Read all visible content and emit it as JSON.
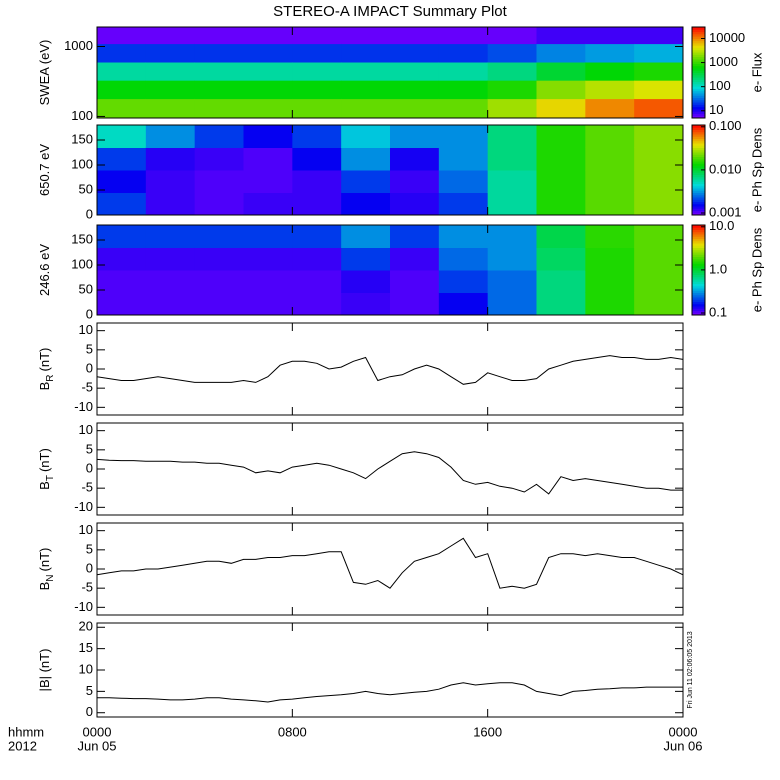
{
  "chart_data": [
    {
      "type": "heatmap",
      "title": "STEREO-A IMPACT Summary Plot",
      "ylabel": "SWEA (eV)",
      "zlabel": "e- Flux",
      "xlim": [
        0,
        24
      ],
      "xbins": [
        0,
        2,
        4,
        6,
        8,
        10,
        12,
        14,
        16,
        18,
        20,
        22,
        24
      ],
      "ylim": [
        95,
        1900
      ],
      "log_y": true,
      "yticks": [
        100,
        1000
      ],
      "ybins": [
        95,
        180,
        330,
        600,
        1100,
        1900
      ],
      "zlim": [
        5,
        30000
      ],
      "log_z": true,
      "zticks": [
        10,
        100,
        1000,
        10000
      ],
      "values": [
        [
          1500,
          600,
          150,
          20,
          6
        ],
        [
          1500,
          600,
          150,
          20,
          6
        ],
        [
          1500,
          600,
          150,
          20,
          6
        ],
        [
          1500,
          600,
          150,
          20,
          6
        ],
        [
          1500,
          600,
          150,
          20,
          6
        ],
        [
          1500,
          600,
          150,
          20,
          6
        ],
        [
          1500,
          600,
          150,
          20,
          6
        ],
        [
          1500,
          600,
          150,
          20,
          6
        ],
        [
          2500,
          800,
          200,
          25,
          6
        ],
        [
          5000,
          2000,
          400,
          40,
          8
        ],
        [
          10000,
          3000,
          600,
          50,
          8
        ],
        [
          15000,
          4000,
          800,
          60,
          8
        ]
      ]
    },
    {
      "type": "heatmap",
      "ylabel": "650.7 eV",
      "zlabel": "e- Ph Sp Dens",
      "xlim": [
        0,
        24
      ],
      "xbins": [
        0,
        2,
        4,
        6,
        8,
        10,
        12,
        14,
        16,
        18,
        20,
        22,
        24
      ],
      "ylim": [
        0,
        180
      ],
      "log_y": false,
      "yticks": [
        0,
        50,
        100,
        150
      ],
      "ybins": [
        0,
        45,
        90,
        135,
        180
      ],
      "zlim": [
        0.0009,
        0.11
      ],
      "log_z": true,
      "zticks": [
        {
          "value": 0.001,
          "label": "0.001"
        },
        {
          "value": 0.01,
          "label": "0.010"
        },
        {
          "value": 0.1,
          "label": "0.100"
        }
      ],
      "values": [
        [
          0.002,
          0.0015,
          0.002,
          0.005
        ],
        [
          0.0012,
          0.0012,
          0.0013,
          0.003
        ],
        [
          0.0011,
          0.0011,
          0.0012,
          0.002
        ],
        [
          0.0012,
          0.0011,
          0.0011,
          0.0015
        ],
        [
          0.0012,
          0.0012,
          0.0015,
          0.002
        ],
        [
          0.0015,
          0.002,
          0.003,
          0.004
        ],
        [
          0.0013,
          0.0012,
          0.0014,
          0.003
        ],
        [
          0.002,
          0.0025,
          0.003,
          0.003
        ],
        [
          0.006,
          0.006,
          0.007,
          0.007
        ],
        [
          0.015,
          0.015,
          0.015,
          0.015
        ],
        [
          0.02,
          0.02,
          0.02,
          0.02
        ],
        [
          0.025,
          0.025,
          0.025,
          0.025
        ]
      ]
    },
    {
      "type": "heatmap",
      "ylabel": "246.6 eV",
      "zlabel": "e- Ph Sp Dens",
      "xlim": [
        0,
        24
      ],
      "xbins": [
        0,
        2,
        4,
        6,
        8,
        10,
        12,
        14,
        16,
        18,
        20,
        22,
        24
      ],
      "ylim": [
        0,
        180
      ],
      "log_y": false,
      "yticks": [
        0,
        50,
        100,
        150
      ],
      "ybins": [
        0,
        45,
        90,
        135,
        180
      ],
      "zlim": [
        0.09,
        11
      ],
      "log_z": true,
      "zticks": [
        0.1,
        {
          "value": 1,
          "label": "1.0"
        },
        {
          "value": 10,
          "label": "10.0"
        }
      ],
      "values": [
        [
          0.11,
          0.11,
          0.12,
          0.2
        ],
        [
          0.11,
          0.11,
          0.12,
          0.2
        ],
        [
          0.11,
          0.11,
          0.12,
          0.2
        ],
        [
          0.11,
          0.11,
          0.12,
          0.2
        ],
        [
          0.11,
          0.11,
          0.12,
          0.2
        ],
        [
          0.12,
          0.13,
          0.2,
          0.3
        ],
        [
          0.11,
          0.11,
          0.12,
          0.2
        ],
        [
          0.15,
          0.2,
          0.25,
          0.3
        ],
        [
          0.25,
          0.25,
          0.3,
          0.3
        ],
        [
          0.7,
          0.7,
          0.8,
          0.9
        ],
        [
          1.5,
          1.5,
          1.5,
          1.6
        ],
        [
          2.0,
          2.0,
          2.0,
          2.0
        ]
      ]
    },
    {
      "type": "line",
      "ylabel": "B",
      "ylabel_sub": "R",
      "ylabel_unit": "(nT)",
      "color": "#000000",
      "xlim": [
        0,
        24
      ],
      "ylim": [
        -12,
        12
      ],
      "yticks": [
        -10,
        -5,
        0,
        5,
        10
      ],
      "x": [
        0,
        0.5,
        1,
        1.5,
        2,
        2.5,
        3,
        3.5,
        4,
        4.5,
        5,
        5.5,
        6,
        6.5,
        7,
        7.5,
        8,
        8.5,
        9,
        9.5,
        10,
        10.5,
        11,
        11.5,
        12,
        12.5,
        13,
        13.5,
        14,
        14.5,
        15,
        15.5,
        16,
        16.5,
        17,
        17.5,
        18,
        18.5,
        19,
        19.5,
        20,
        20.5,
        21,
        21.5,
        22,
        22.5,
        23,
        23.5,
        24
      ],
      "values": [
        -2,
        -2.5,
        -3,
        -3,
        -2.5,
        -2,
        -2.5,
        -3,
        -3.5,
        -3.5,
        -3.5,
        -3.5,
        -3,
        -3.5,
        -2,
        1,
        2,
        2,
        1.5,
        0,
        0.5,
        2,
        3,
        -3,
        -2,
        -1.5,
        0,
        1,
        0,
        -2,
        -4,
        -3.5,
        -1,
        -2,
        -3,
        -3,
        -2.5,
        0,
        1,
        2,
        2.5,
        3,
        3.5,
        3,
        3,
        2.5,
        2.5,
        3,
        2.5
      ]
    },
    {
      "type": "line",
      "ylabel": "B",
      "ylabel_sub": "T",
      "ylabel_unit": "(nT)",
      "color": "#000000",
      "xlim": [
        0,
        24
      ],
      "ylim": [
        -12,
        12
      ],
      "yticks": [
        -10,
        -5,
        0,
        5,
        10
      ],
      "x": [
        0,
        0.5,
        1,
        1.5,
        2,
        2.5,
        3,
        3.5,
        4,
        4.5,
        5,
        5.5,
        6,
        6.5,
        7,
        7.5,
        8,
        8.5,
        9,
        9.5,
        10,
        10.5,
        11,
        11.5,
        12,
        12.5,
        13,
        13.5,
        14,
        14.5,
        15,
        15.5,
        16,
        16.5,
        17,
        17.5,
        18,
        18.5,
        19,
        19.5,
        20,
        20.5,
        21,
        21.5,
        22,
        22.5,
        23,
        23.5,
        24
      ],
      "values": [
        2.5,
        2.3,
        2.2,
        2.2,
        2,
        2,
        2,
        1.8,
        1.8,
        1.5,
        1.5,
        1,
        0.5,
        -1,
        -0.5,
        -1,
        0.5,
        1,
        1.5,
        1,
        0,
        -1,
        -2.5,
        0,
        2,
        4,
        4.5,
        4,
        3,
        0.5,
        -3,
        -4,
        -3.5,
        -4.5,
        -5,
        -6,
        -4,
        -6.5,
        -2,
        -3,
        -2.5,
        -3,
        -3.5,
        -4,
        -4.5,
        -5,
        -5,
        -5.5,
        -5.5
      ]
    },
    {
      "type": "line",
      "ylabel": "B",
      "ylabel_sub": "N",
      "ylabel_unit": "(nT)",
      "color": "#000000",
      "xlim": [
        0,
        24
      ],
      "ylim": [
        -12,
        12
      ],
      "yticks": [
        -10,
        -5,
        0,
        5,
        10
      ],
      "x": [
        0,
        0.5,
        1,
        1.5,
        2,
        2.5,
        3,
        3.5,
        4,
        4.5,
        5,
        5.5,
        6,
        6.5,
        7,
        7.5,
        8,
        8.5,
        9,
        9.5,
        10,
        10.5,
        11,
        11.5,
        12,
        12.5,
        13,
        13.5,
        14,
        14.5,
        15,
        15.5,
        16,
        16.5,
        17,
        17.5,
        18,
        18.5,
        19,
        19.5,
        20,
        20.5,
        21,
        21.5,
        22,
        22.5,
        23,
        23.5,
        24
      ],
      "values": [
        -1.5,
        -1,
        -0.5,
        -0.5,
        0,
        0,
        0.5,
        1,
        1.5,
        2,
        2,
        1.5,
        2.5,
        2.5,
        3,
        3,
        3.5,
        3.5,
        4,
        4.5,
        4.5,
        -3.5,
        -4,
        -3,
        -5,
        -1,
        2,
        3,
        4,
        6,
        8,
        3,
        4,
        -5,
        -4.5,
        -5,
        -4,
        3,
        4,
        4,
        3.5,
        4,
        3.5,
        3,
        3,
        2,
        1,
        0,
        -1.5
      ]
    },
    {
      "type": "line",
      "ylabel": "|B| (nT)",
      "color": "#000000",
      "xlim": [
        0,
        24
      ],
      "ylim": [
        -1,
        21
      ],
      "yticks": [
        0,
        5,
        10,
        15,
        20
      ],
      "annotation": "Fri Jun 11 02:06:05 2013",
      "xticks": [
        {
          "value": 0,
          "label": "0000"
        },
        {
          "value": 8,
          "label": "0800"
        },
        {
          "value": 16,
          "label": "1600"
        },
        {
          "value": 24,
          "label": "0000"
        }
      ],
      "xtick_dates": [
        "Jun 05",
        null,
        null,
        "Jun 06"
      ],
      "xlabel": "hhmm",
      "year": "2012",
      "x": [
        0,
        0.5,
        1,
        1.5,
        2,
        2.5,
        3,
        3.5,
        4,
        4.5,
        5,
        5.5,
        6,
        6.5,
        7,
        7.5,
        8,
        8.5,
        9,
        9.5,
        10,
        10.5,
        11,
        11.5,
        12,
        12.5,
        13,
        13.5,
        14,
        14.5,
        15,
        15.5,
        16,
        16.5,
        17,
        17.5,
        18,
        18.5,
        19,
        19.5,
        20,
        20.5,
        21,
        21.5,
        22,
        22.5,
        23,
        23.5,
        24
      ],
      "values": [
        3.5,
        3.5,
        3.4,
        3.3,
        3.3,
        3.2,
        3,
        3,
        3.2,
        3.5,
        3.5,
        3.2,
        3,
        2.8,
        2.5,
        3,
        3.2,
        3.5,
        3.8,
        4,
        4.2,
        4.5,
        5,
        4.5,
        4.2,
        4.5,
        4.8,
        5,
        5.5,
        6.5,
        7,
        6.5,
        6.8,
        7,
        7,
        6.5,
        5,
        4.5,
        4,
        5,
        5.2,
        5.5,
        5.6,
        5.8,
        5.8,
        6,
        6,
        6,
        6
      ]
    }
  ]
}
